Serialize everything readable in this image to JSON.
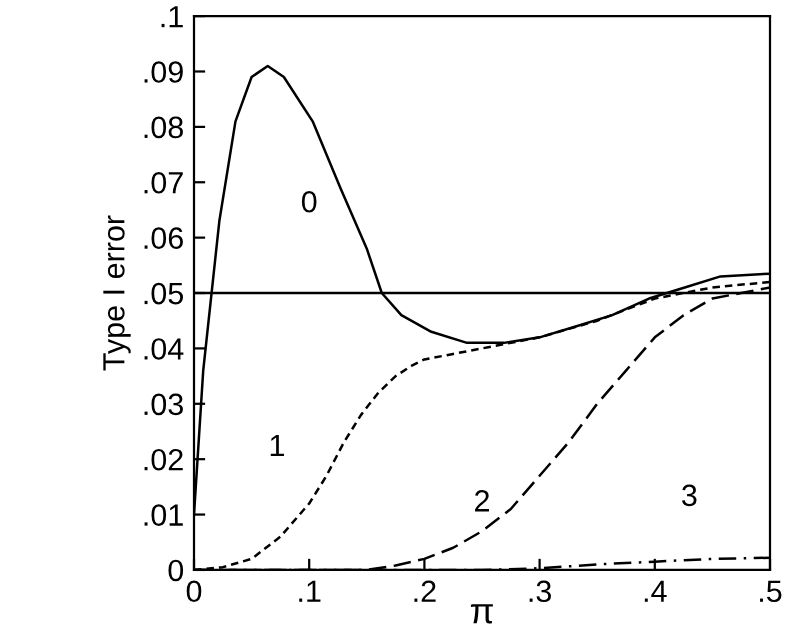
{
  "chart_data": {
    "type": "line",
    "xlabel": "π",
    "ylabel": "Type I error",
    "xlim": [
      0,
      0.5
    ],
    "ylim": [
      0,
      0.1
    ],
    "xticks": [
      0,
      {
        "value": 0.1,
        "label": ".1"
      },
      {
        "value": 0.2,
        "label": ".2"
      },
      {
        "value": 0.3,
        "label": ".3"
      },
      {
        "value": 0.4,
        "label": ".4"
      },
      {
        "value": 0.5,
        "label": ".5"
      }
    ],
    "yticks": [
      0,
      {
        "value": 0.01,
        "label": ".01"
      },
      {
        "value": 0.02,
        "label": ".02"
      },
      {
        "value": 0.03,
        "label": ".03"
      },
      {
        "value": 0.04,
        "label": ".04"
      },
      {
        "value": 0.05,
        "label": ".05"
      },
      {
        "value": 0.06,
        "label": ".06"
      },
      {
        "value": 0.07,
        "label": ".07"
      },
      {
        "value": 0.08,
        "label": ".08"
      },
      {
        "value": 0.09,
        "label": ".09"
      },
      {
        "value": 0.1,
        "label": ".1"
      }
    ],
    "grid": false,
    "legend": false,
    "ref_lines": [
      {
        "axis": "y",
        "value": 0.05,
        "color": "#000000",
        "line_style": "solid"
      }
    ],
    "series": [
      {
        "name": "0",
        "color": "#000000",
        "line_style": "solid",
        "x": [
          0,
          0.008,
          0.022,
          0.036,
          0.05,
          0.064,
          0.078,
          0.103,
          0.127,
          0.15,
          0.163,
          0.18,
          0.206,
          0.237,
          0.269,
          0.3,
          0.332,
          0.363,
          0.395,
          0.426,
          0.457,
          0.5
        ],
        "values": [
          0.01,
          0.036,
          0.063,
          0.081,
          0.089,
          0.091,
          0.089,
          0.081,
          0.069,
          0.058,
          0.05,
          0.046,
          0.043,
          0.041,
          0.041,
          0.042,
          0.044,
          0.046,
          0.049,
          0.051,
          0.053,
          0.0535
        ]
      },
      {
        "name": "1",
        "color": "#000000",
        "line_style": "dotted",
        "x": [
          0,
          0.025,
          0.05,
          0.075,
          0.1,
          0.115,
          0.13,
          0.145,
          0.16,
          0.175,
          0.19,
          0.2,
          0.225,
          0.25,
          0.3,
          0.35,
          0.4,
          0.45,
          0.5
        ],
        "values": [
          0,
          0.0005,
          0.002,
          0.006,
          0.012,
          0.017,
          0.023,
          0.028,
          0.032,
          0.035,
          0.037,
          0.038,
          0.039,
          0.04,
          0.042,
          0.045,
          0.049,
          0.051,
          0.052
        ]
      },
      {
        "name": "2",
        "color": "#000000",
        "line_style": "dashed",
        "x": [
          0,
          0.15,
          0.175,
          0.2,
          0.225,
          0.25,
          0.275,
          0.3,
          0.325,
          0.35,
          0.375,
          0.4,
          0.425,
          0.45,
          0.475,
          0.5
        ],
        "values": [
          0,
          0,
          0.0008,
          0.002,
          0.004,
          0.007,
          0.011,
          0.017,
          0.023,
          0.03,
          0.036,
          0.042,
          0.046,
          0.049,
          0.05,
          0.051
        ]
      },
      {
        "name": "3",
        "color": "#000000",
        "line_style": "dashdot",
        "x": [
          0,
          0.25,
          0.3,
          0.35,
          0.4,
          0.45,
          0.5
        ],
        "values": [
          0,
          0,
          0.0003,
          0.001,
          0.0015,
          0.002,
          0.0022
        ]
      }
    ]
  }
}
